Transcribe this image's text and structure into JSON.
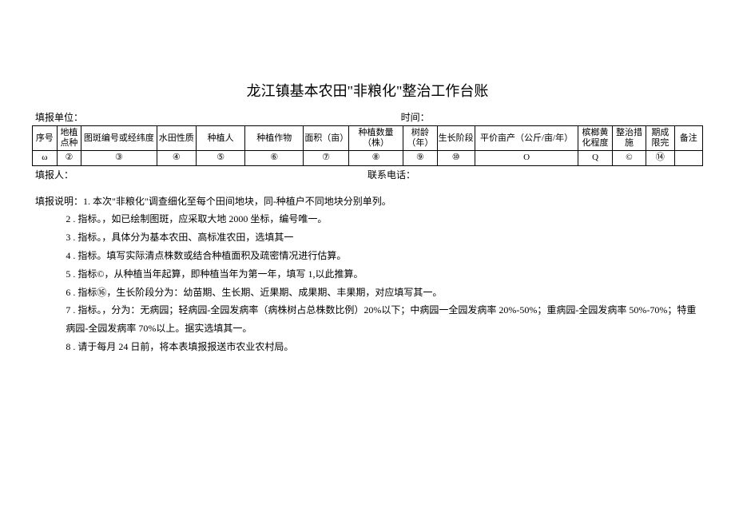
{
  "title": "龙江镇基本农田\"非粮化\"整治工作台账",
  "topLeft": "填报单位：",
  "topRight": "时间：",
  "headers": [
    "序号",
    "地植点种",
    "图斑编号或经纬度",
    "水田性质",
    "种植人",
    "种植作物",
    "面积（亩）",
    "种植数量（株）",
    "树龄（年）",
    "生长阶段",
    "平价亩产（公斤/亩/年）",
    "槟榔黄化程度",
    "整治措施",
    "期成限完",
    "备注"
  ],
  "row": [
    "ω",
    "②",
    "③",
    "④",
    "⑤",
    "⑥",
    "⑦",
    "⑧",
    "⑨",
    "⑩",
    "O",
    "Q",
    "©",
    "⑭",
    ""
  ],
  "colWidths": [
    "26px",
    "26px",
    "80px",
    "42px",
    "52px",
    "62px",
    "48px",
    "58px",
    "36px",
    "40px",
    "110px",
    "36px",
    "36px",
    "30px",
    "30px"
  ],
  "belowLeft": "填报人：",
  "belowRight": "联系电话：",
  "notesLabel": "填报说明：",
  "notes": [
    "1. 本次\"非粮化\"调查细化至每个田间地块，同-种植户不同地块分别单列。",
    "2 . 指标。，如已绘制图斑，应采取大地 2000 坐标，编号唯一。",
    "3 . 指标。，具体分为基本农田、高标准农田，选填其一",
    "4 . 指标。填写实际清点株数或结合种植面积及疏密情况进行估算。",
    "5 . 指标©，从种植当年起算，即种植当年为第一年，填写 1,以此推算。",
    "6 . 指标⑯，生长阶段分为：幼苗期、生长期、近果期、成果期、丰果期，对应填写其一。",
    "7 . 指标。，分为：无病园；轻病园-全园发病率（病株树占总株数比例）20%以下；中病园一全园发病率 20%-50%；重病园-全园发病率 50%-70%；特重病园-全园发病率 70%以上。据实选填其一。",
    "8 . 请于每月 24 日前，将本表填报报送市农业农村局。"
  ]
}
